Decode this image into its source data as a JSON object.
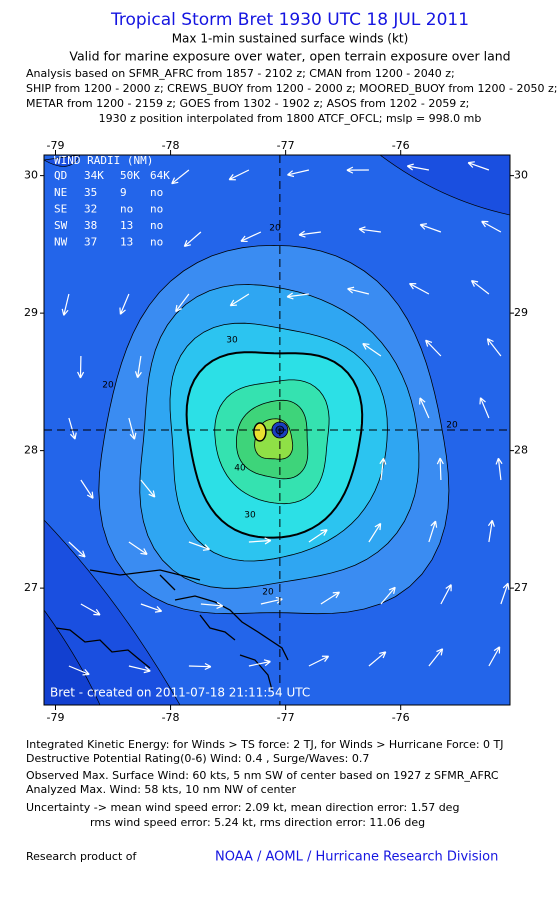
{
  "header": {
    "title": "Tropical Storm Bret 1930 UTC 18 JUL 2011",
    "subtitle": "Max 1-min sustained surface winds (kt)",
    "validity": "Valid for marine exposure over water, open terrain exposure over land",
    "analysis_lines": [
      "Analysis based on SFMR_AFRC from 1857 - 2102 z; CMAN from 1200 - 2040 z;",
      "SHIP from 1200 - 2000 z; CREWS_BUOY from 1200 - 2000 z; MOORED_BUOY from 1200 - 2050 z;",
      "METAR from 1200 - 2159 z; GOES from 1302 - 1902 z; ASOS from 1202 - 2059 z;"
    ],
    "position_note": "1930 z position interpolated from 1800 ATCF_OFCL; mslp = 998.0 mb"
  },
  "map": {
    "xlim": [
      -79.1,
      -75.05
    ],
    "ylim": [
      26.15,
      30.15
    ],
    "xticks": [
      -79,
      -78,
      -77,
      -76
    ],
    "yticks": [
      27,
      28,
      29,
      30
    ],
    "center_lon": -77.05,
    "center_lat": 28.15,
    "contours": [
      20,
      25,
      30,
      34,
      40,
      45,
      50
    ],
    "contour_labels": [
      20,
      30,
      40
    ],
    "credit": "Bret - created on 2011-07-18 21:11:54 UTC"
  },
  "wind_radii": {
    "title": "WIND RADII (NM)",
    "header": [
      "QD",
      "34K",
      "50K",
      "64K"
    ],
    "rows": [
      [
        "NE",
        35,
        9,
        "no"
      ],
      [
        "SE",
        32,
        "no",
        "no"
      ],
      [
        "SW",
        38,
        13,
        "no"
      ],
      [
        "NW",
        37,
        13,
        "no"
      ]
    ]
  },
  "footer": {
    "lines": [
      "Integrated Kinetic Energy:  for Winds > TS force: 2 TJ,  for Winds > Hurricane Force: 0 TJ",
      "Destructive Potential Rating(0-6)   Wind: 0.4 , Surge/Waves: 0.7",
      "Observed Max. Surface Wind: 60 kts, 5 nm SW of center based on 1927 z SFMR_AFRC",
      "Analyzed Max. Wind: 58 kts, 10 nm NW of center",
      "Uncertainty -> mean wind speed error: 2.09 kt,   mean direction error: 1.57 deg",
      "rms wind speed error: 5.24 kt,   rms direction error: 11.06 deg"
    ],
    "product": "Research product of",
    "organization": "NOAA / AOML / Hurricane Research Division"
  }
}
